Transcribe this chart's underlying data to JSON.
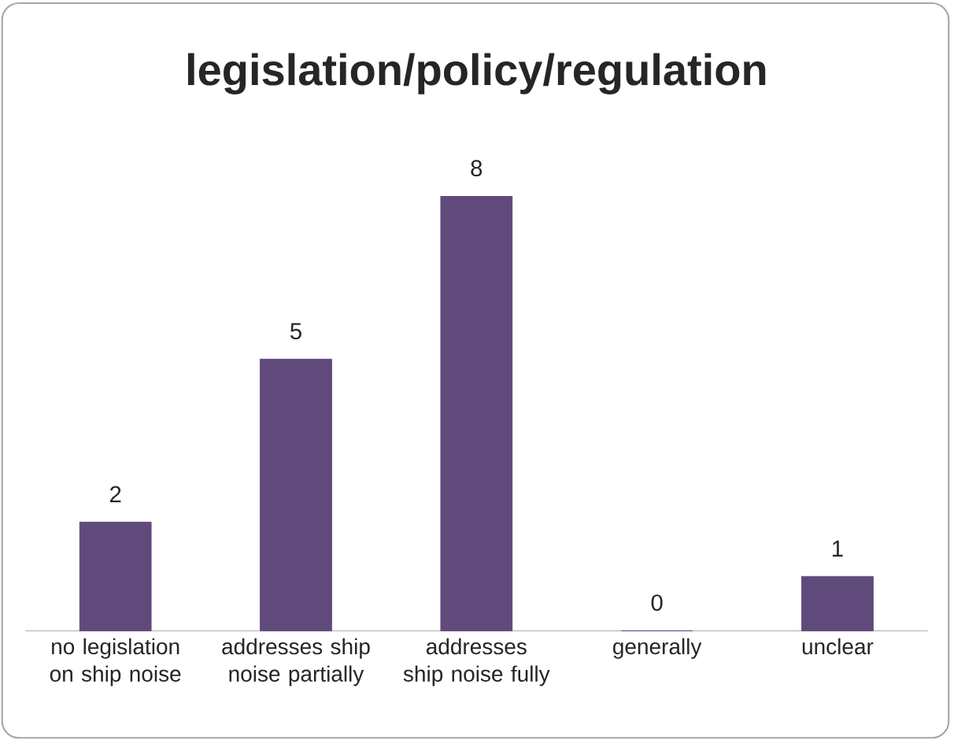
{
  "chart_data": {
    "type": "bar",
    "title": "legislation/policy/regulation",
    "categories": [
      "no legislation on ship noise",
      "addresses ship noise partially",
      "addresses ship noise fully",
      "generally",
      "unclear"
    ],
    "values": [
      2,
      5,
      8,
      0,
      1
    ],
    "color": "#604a7b",
    "data_labels": true
  }
}
